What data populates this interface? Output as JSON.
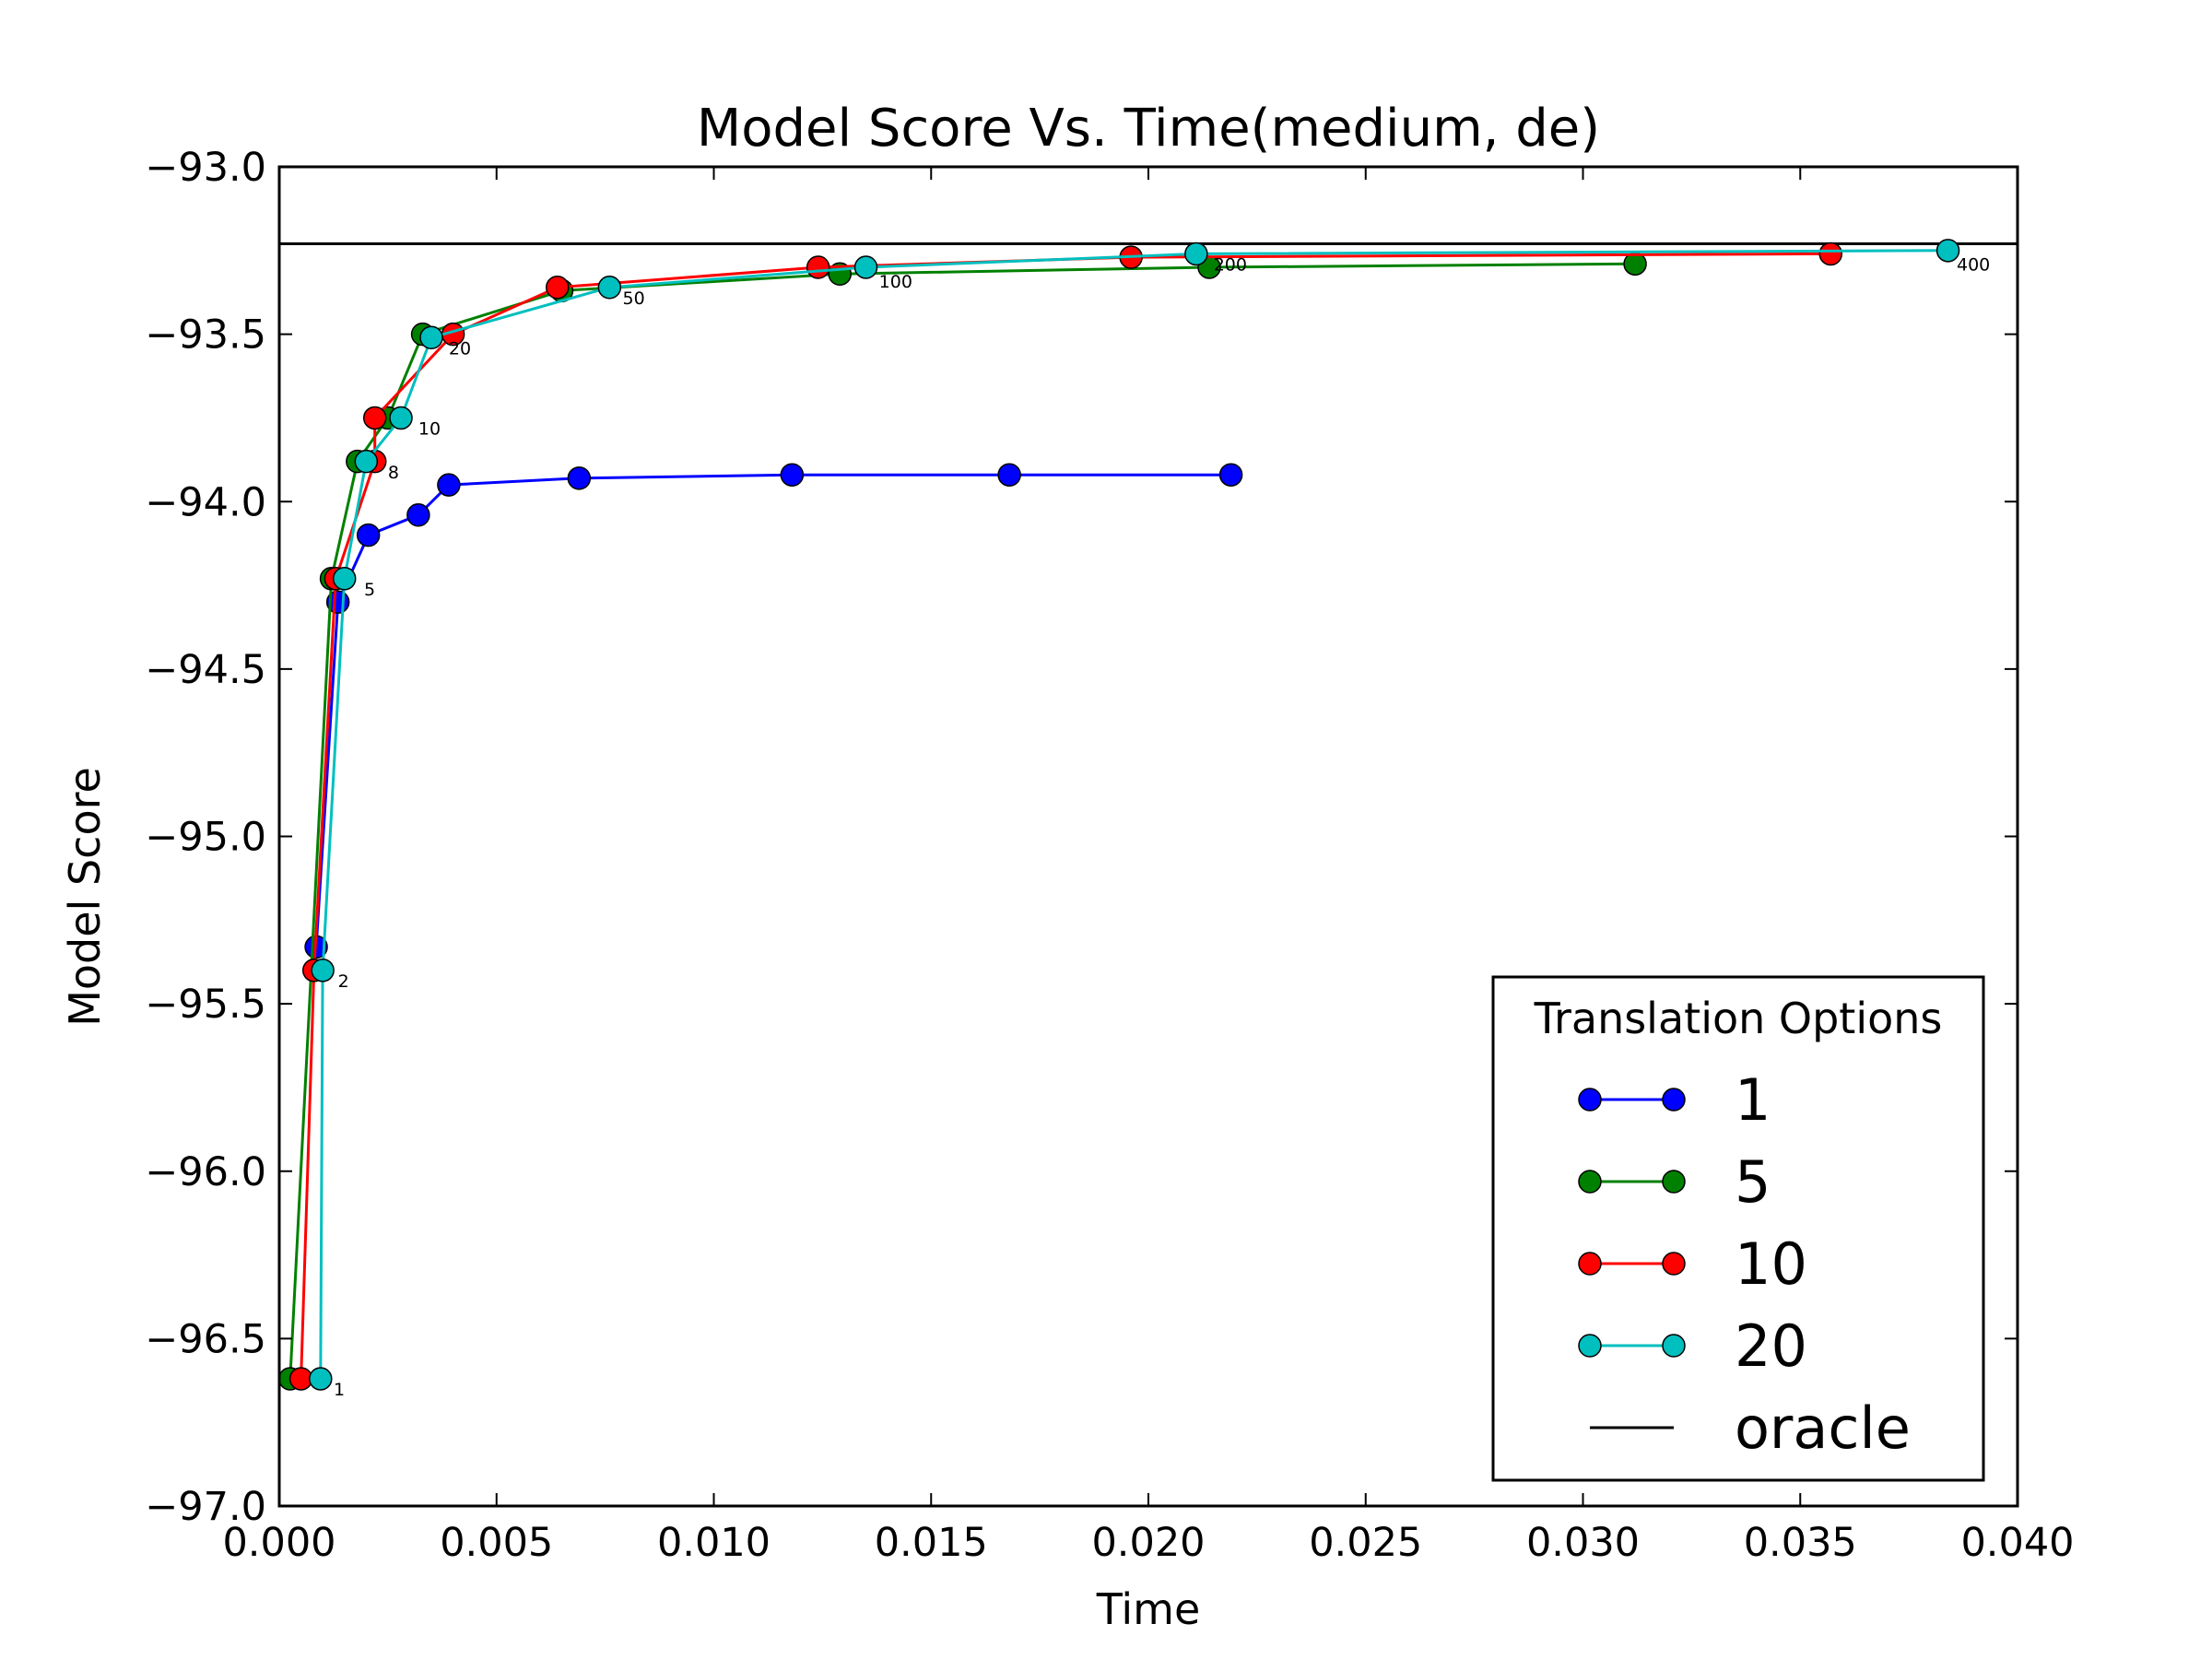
{
  "chart_data": {
    "type": "line",
    "title": "Model Score Vs. Time(medium, de)",
    "xlabel": "Time",
    "ylabel": "Model Score",
    "xlim": [
      0.0,
      0.04
    ],
    "ylim": [
      -97.0,
      -93.0
    ],
    "x_ticks": [
      "0.000",
      "0.005",
      "0.010",
      "0.015",
      "0.020",
      "0.025",
      "0.030",
      "0.035",
      "0.040"
    ],
    "x_tick_values": [
      0.0,
      0.005,
      0.01,
      0.015,
      0.02,
      0.025,
      0.03,
      0.035,
      0.04
    ],
    "y_ticks": [
      "−93.0",
      "−93.5",
      "−94.0",
      "−94.5",
      "−95.0",
      "−95.5",
      "−96.0",
      "−96.5",
      "−97.0"
    ],
    "y_tick_values": [
      -93.0,
      -93.5,
      -94.0,
      -94.5,
      -95.0,
      -95.5,
      -96.0,
      -96.5,
      -97.0
    ],
    "grid": false,
    "legend": {
      "title": "Translation Options",
      "position": "lower-right",
      "entries": [
        "1",
        "5",
        "10",
        "20",
        "oracle"
      ]
    },
    "series": [
      {
        "name": "1",
        "color": "#0000ff",
        "x": [
          0.00085,
          0.00135,
          0.00205,
          0.0032,
          0.0039,
          0.0069,
          0.0118,
          0.0168,
          0.0219
        ],
        "y": [
          -95.33,
          -94.3,
          -94.1,
          -94.04,
          -93.95,
          -93.93,
          -93.92,
          -93.92,
          -93.92
        ]
      },
      {
        "name": "5",
        "color": "#008000",
        "x": [
          0.00025,
          0.0012,
          0.0018,
          0.0025,
          0.0033,
          0.0065,
          0.0129,
          0.0214,
          0.0312
        ],
        "y": [
          -96.62,
          -94.23,
          -93.88,
          -93.75,
          -93.5,
          -93.37,
          -93.32,
          -93.3,
          -93.29
        ]
      },
      {
        "name": "10",
        "color": "#ff0000",
        "x": [
          0.0005,
          0.0008,
          0.0013,
          0.0022,
          0.0022,
          0.004,
          0.0064,
          0.0124,
          0.0196,
          0.0357
        ],
        "y": [
          -96.62,
          -95.4,
          -94.23,
          -93.88,
          -93.75,
          -93.5,
          -93.36,
          -93.3,
          -93.27,
          -93.26
        ]
      },
      {
        "name": "20",
        "color": "#00bfbf",
        "x": [
          0.00095,
          0.001,
          0.0015,
          0.002,
          0.0028,
          0.0035,
          0.0076,
          0.0135,
          0.0211,
          0.0384
        ],
        "y": [
          -96.62,
          -95.4,
          -94.23,
          -93.88,
          -93.75,
          -93.51,
          -93.36,
          -93.3,
          -93.26,
          -93.25
        ]
      }
    ],
    "oracle": {
      "name": "oracle",
      "color": "#000000",
      "y": -93.23
    },
    "annotations": [
      {
        "text": "1",
        "x": 0.00125,
        "y": -96.67
      },
      {
        "text": "2",
        "x": 0.00135,
        "y": -95.45
      },
      {
        "text": "5",
        "x": 0.00195,
        "y": -94.28
      },
      {
        "text": "8",
        "x": 0.0025,
        "y": -93.93
      },
      {
        "text": "10",
        "x": 0.0032,
        "y": -93.8
      },
      {
        "text": "20",
        "x": 0.0039,
        "y": -93.56
      },
      {
        "text": "50",
        "x": 0.0079,
        "y": -93.41
      },
      {
        "text": "100",
        "x": 0.0138,
        "y": -93.36
      },
      {
        "text": "200",
        "x": 0.0215,
        "y": -93.31
      },
      {
        "text": "400",
        "x": 0.0386,
        "y": -93.31
      }
    ]
  }
}
